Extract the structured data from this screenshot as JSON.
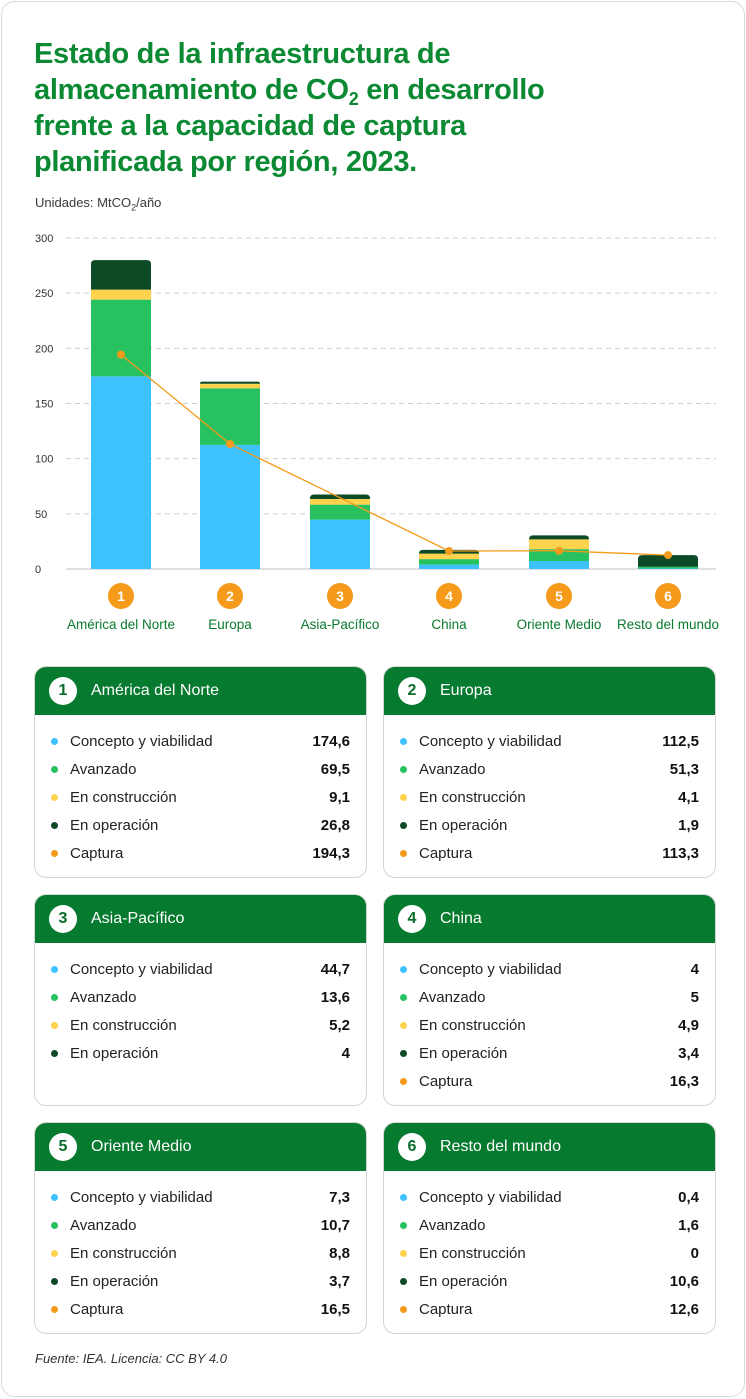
{
  "title": {
    "line1": "Estado de la infraestructura de",
    "line2_bold": "almacenamiento de CO",
    "line2_sub": "2",
    "line2_rest": " en desarrollo",
    "line3": "frente a la capacidad de captura",
    "line4": "planificada por región, 2023."
  },
  "units": {
    "prefix": "Unidades: MtCO",
    "sub": "2",
    "suffix": "/año"
  },
  "source": "Fuente: IEA. Licencia: CC BY 4.0",
  "colors": {
    "concepto": "#3ec2ff",
    "avanzado": "#27c160",
    "construccion": "#ffd34d",
    "operacion": "#0c4a26",
    "captura": "#f59a1a",
    "header": "#067a2f",
    "title": "#0b8a33"
  },
  "chart_data": {
    "type": "bar",
    "stacked": true,
    "categories": [
      "América del Norte",
      "Europa",
      "Asia-Pacífico",
      "China",
      "Oriente Medio",
      "Resto del mundo"
    ],
    "category_numbers": [
      "1",
      "2",
      "3",
      "4",
      "5",
      "6"
    ],
    "series": [
      {
        "name": "Concepto y viabilidad",
        "key": "concepto",
        "values": [
          174.6,
          112.5,
          44.7,
          4,
          7.3,
          0.4
        ]
      },
      {
        "name": "Avanzado",
        "key": "avanzado",
        "values": [
          69.5,
          51.3,
          13.6,
          5,
          10.7,
          1.6
        ]
      },
      {
        "name": "En construcción",
        "key": "construccion",
        "values": [
          9.1,
          4.1,
          5.2,
          4.9,
          8.8,
          0
        ]
      },
      {
        "name": "En operación",
        "key": "operacion",
        "values": [
          26.8,
          1.9,
          4,
          3.4,
          3.7,
          10.6
        ]
      }
    ],
    "line_series": {
      "name": "Captura",
      "key": "captura",
      "values": [
        194.3,
        113.3,
        null,
        16.3,
        16.5,
        12.6
      ]
    },
    "ylim": [
      0,
      300
    ],
    "yticks": [
      "0",
      "50",
      "100",
      "150",
      "200",
      "250",
      "300"
    ],
    "grid": true
  },
  "cards": [
    {
      "num": "1",
      "title": "América del Norte",
      "rows": [
        {
          "label": "Concepto y viabilidad",
          "value": "174,6",
          "key": "concepto"
        },
        {
          "label": "Avanzado",
          "value": "69,5",
          "key": "avanzado"
        },
        {
          "label": "En construcción",
          "value": "9,1",
          "key": "construccion"
        },
        {
          "label": "En operación",
          "value": "26,8",
          "key": "operacion"
        },
        {
          "label": "Captura",
          "value": "194,3",
          "key": "captura"
        }
      ]
    },
    {
      "num": "2",
      "title": "Europa",
      "rows": [
        {
          "label": "Concepto y viabilidad",
          "value": "112,5",
          "key": "concepto"
        },
        {
          "label": "Avanzado",
          "value": "51,3",
          "key": "avanzado"
        },
        {
          "label": "En construcción",
          "value": "4,1",
          "key": "construccion"
        },
        {
          "label": "En operación",
          "value": "1,9",
          "key": "operacion"
        },
        {
          "label": "Captura",
          "value": "113,3",
          "key": "captura"
        }
      ]
    },
    {
      "num": "3",
      "title": "Asia-Pacífico",
      "rows": [
        {
          "label": "Concepto y viabilidad",
          "value": "44,7",
          "key": "concepto"
        },
        {
          "label": "Avanzado",
          "value": "13,6",
          "key": "avanzado"
        },
        {
          "label": "En construcción",
          "value": "5,2",
          "key": "construccion"
        },
        {
          "label": "En operación",
          "value": "4",
          "key": "operacion"
        }
      ]
    },
    {
      "num": "4",
      "title": "China",
      "rows": [
        {
          "label": "Concepto y viabilidad",
          "value": "4",
          "key": "concepto"
        },
        {
          "label": "Avanzado",
          "value": "5",
          "key": "avanzado"
        },
        {
          "label": "En construcción",
          "value": "4,9",
          "key": "construccion"
        },
        {
          "label": "En operación",
          "value": "3,4",
          "key": "operacion"
        },
        {
          "label": "Captura",
          "value": "16,3",
          "key": "captura"
        }
      ]
    },
    {
      "num": "5",
      "title": "Oriente Medio",
      "rows": [
        {
          "label": "Concepto y viabilidad",
          "value": "7,3",
          "key": "concepto"
        },
        {
          "label": "Avanzado",
          "value": "10,7",
          "key": "avanzado"
        },
        {
          "label": "En construcción",
          "value": "8,8",
          "key": "construccion"
        },
        {
          "label": "En operación",
          "value": "3,7",
          "key": "operacion"
        },
        {
          "label": "Captura",
          "value": "16,5",
          "key": "captura"
        }
      ]
    },
    {
      "num": "6",
      "title": "Resto del mundo",
      "rows": [
        {
          "label": "Concepto y viabilidad",
          "value": "0,4",
          "key": "concepto"
        },
        {
          "label": "Avanzado",
          "value": "1,6",
          "key": "avanzado"
        },
        {
          "label": "En construcción",
          "value": "0",
          "key": "construccion"
        },
        {
          "label": "En operación",
          "value": "10,6",
          "key": "operacion"
        },
        {
          "label": "Captura",
          "value": "12,6",
          "key": "captura"
        }
      ]
    }
  ]
}
